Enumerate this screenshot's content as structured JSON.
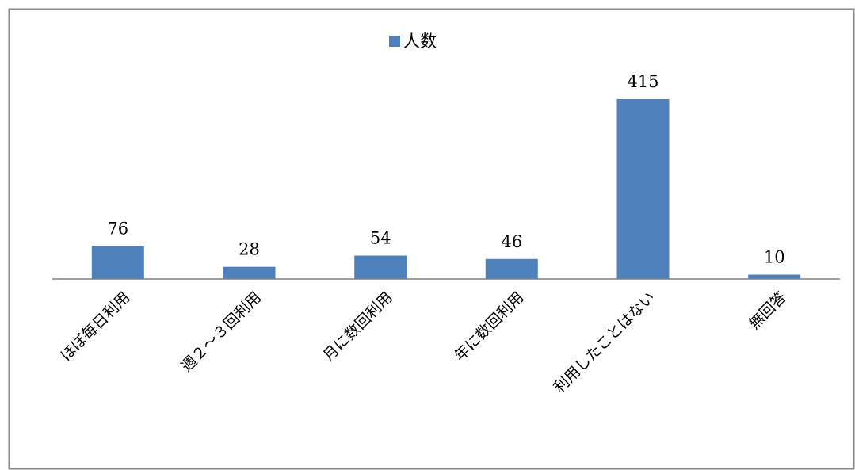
{
  "chart_data": {
    "type": "bar",
    "title": "",
    "xlabel": "",
    "ylabel": "",
    "categories": [
      "ほぼ毎日利用",
      "週２～３回利用",
      "月に数回利用",
      "年に数回利用",
      "利用したことはない",
      "無回答"
    ],
    "series": [
      {
        "name": "人数",
        "values": [
          76,
          28,
          54,
          46,
          415,
          10
        ],
        "color": "#4f81bd"
      }
    ],
    "ylim": [
      0,
      415
    ],
    "grid": false,
    "legend": "top",
    "data_labels": true
  }
}
